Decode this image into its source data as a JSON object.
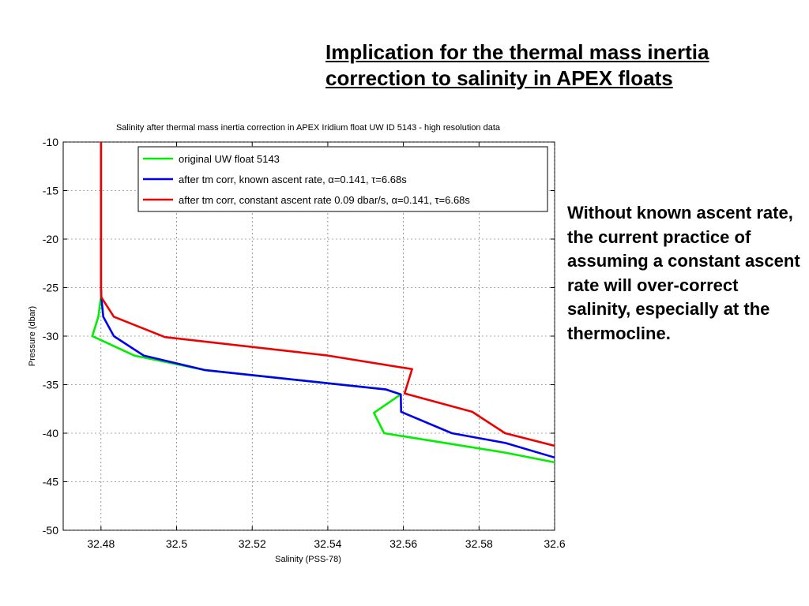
{
  "slide": {
    "title_lines": [
      "Implication for the thermal mass inertia",
      "correction to salinity in APEX floats"
    ],
    "side_text": "Without known ascent rate, the current practice of assuming a constant ascent rate will over-correct salinity, especially at the thermocline."
  },
  "chart_data": {
    "type": "line",
    "title": "Salinity after thermal mass inertia correction in APEX Iridium float UW ID 5143 - high resolution data",
    "xlabel": "Salinity (PSS-78)",
    "ylabel": "Pressure (dbar)",
    "xlim": [
      32.47,
      32.6
    ],
    "ylim": [
      -50,
      -10
    ],
    "xticks": [
      32.48,
      32.5,
      32.52,
      32.54,
      32.56,
      32.58,
      32.6
    ],
    "xtick_labels": [
      "32.48",
      "32.5",
      "32.52",
      "32.54",
      "32.56",
      "32.58",
      "32.6"
    ],
    "yticks": [
      -10,
      -15,
      -20,
      -25,
      -30,
      -35,
      -40,
      -45,
      -50
    ],
    "ytick_labels": [
      "-10",
      "-15",
      "-20",
      "-25",
      "-30",
      "-35",
      "-40",
      "-45",
      "-50"
    ],
    "grid": true,
    "legend_position": "top-right",
    "series": [
      {
        "name": "original UW float 5143",
        "color": "#00ee00",
        "x": [
          32.48,
          32.48,
          32.48,
          32.48,
          32.4798,
          32.4793,
          32.4777,
          32.4888,
          32.5076,
          32.5554,
          32.5593,
          32.5522,
          32.5549,
          32.5869,
          32.6
        ],
        "y": [
          -10,
          -20,
          -25,
          -26,
          -26.5,
          -28,
          -30,
          -32,
          -33.5,
          -35.5,
          -36,
          -37.9,
          -40,
          -42,
          -43
        ]
      },
      {
        "name": "after tm corr, known ascent rate, α=0.141, τ=6.68s",
        "color": "#0000ee",
        "x": [
          32.48,
          32.48,
          32.48,
          32.4801,
          32.4806,
          32.4834,
          32.4913,
          32.5076,
          32.5554,
          32.5593,
          32.5594,
          32.5728,
          32.5869,
          32.6
        ],
        "y": [
          -10,
          -20,
          -25,
          -26,
          -28,
          -30,
          -32,
          -33.5,
          -35.5,
          -36,
          -37.8,
          -40,
          -41,
          -42.5
        ]
      },
      {
        "name": "after tm corr, constant ascent rate 0.09 dbar/s, α=0.141, τ=6.68s",
        "color": "#ee0000",
        "x": [
          32.48,
          32.48,
          32.48,
          32.4801,
          32.4834,
          32.4969,
          32.54,
          32.5623,
          32.5603,
          32.5782,
          32.5869,
          32.6
        ],
        "y": [
          -10,
          -20,
          -25,
          -26,
          -28,
          -30.1,
          -32,
          -33.4,
          -35.9,
          -37.8,
          -40,
          -41.3
        ]
      }
    ]
  }
}
